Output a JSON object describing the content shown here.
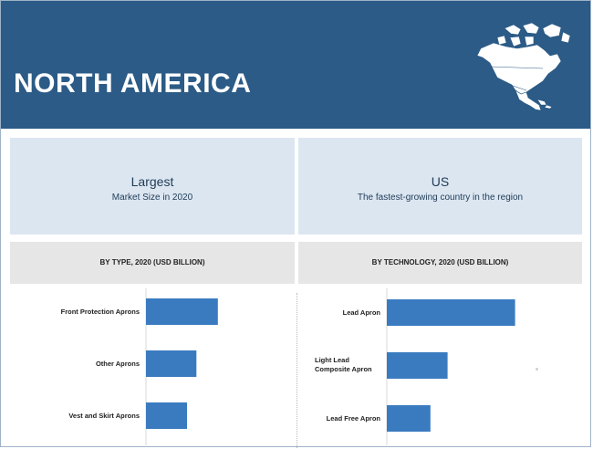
{
  "header": {
    "region": "NORTH AMERICA",
    "map_icon": "north-america-map-icon",
    "background": "#2b5b86"
  },
  "highlights": [
    {
      "title": "Largest",
      "subtitle": "Market Size in 2020"
    },
    {
      "title": "US",
      "subtitle": "The fastest-growing country in the region"
    }
  ],
  "sections": [
    {
      "heading": "BY TYPE, 2020 (USD BILLION)"
    },
    {
      "heading": "BY TECHNOLOGY, 2020 (USD BILLION)"
    }
  ],
  "chart_data": [
    {
      "type": "bar",
      "orientation": "horizontal",
      "title": "BY TYPE, 2020 (USD BILLION)",
      "categories": [
        "Front Protection Aprons",
        "Other Aprons",
        "Vest and Skirt Aprons"
      ],
      "values": [
        0.84,
        0.59,
        0.48
      ],
      "xlim": [
        0,
        1.6
      ],
      "grid": false,
      "color": "#3a7bc0"
    },
    {
      "type": "bar",
      "orientation": "horizontal",
      "title": "BY TECHNOLOGY, 2020 (USD BILLION)",
      "categories": [
        "Lead Apron",
        "Light Lead Composite Apron",
        "Lead Free Apron"
      ],
      "values": [
        1.5,
        0.71,
        0.51
      ],
      "xlim": [
        0,
        1.6
      ],
      "grid": false,
      "color": "#3a7bc0"
    }
  ]
}
